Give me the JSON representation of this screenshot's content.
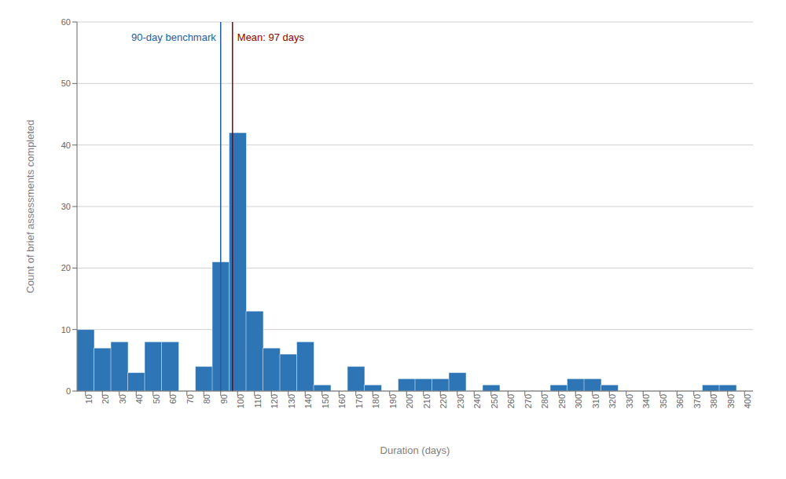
{
  "chart_data": {
    "type": "bar",
    "x": [
      10,
      20,
      30,
      40,
      50,
      60,
      70,
      80,
      90,
      100,
      110,
      120,
      130,
      140,
      150,
      160,
      170,
      180,
      190,
      200,
      210,
      220,
      230,
      240,
      250,
      260,
      270,
      280,
      290,
      300,
      310,
      320,
      330,
      340,
      350,
      360,
      370,
      380,
      390,
      400
    ],
    "values": [
      10,
      7,
      8,
      3,
      8,
      8,
      0,
      4,
      21,
      42,
      13,
      7,
      6,
      8,
      1,
      0,
      4,
      1,
      0,
      2,
      2,
      2,
      3,
      0,
      1,
      0,
      0,
      0,
      1,
      2,
      2,
      1,
      0,
      0,
      0,
      0,
      0,
      1,
      1,
      0
    ],
    "color": "#2e75b6",
    "x_label": "Duration (days)",
    "y_label": "Count of brief assessments completed",
    "xlim": [
      5,
      405
    ],
    "xticks": [
      10,
      20,
      30,
      40,
      50,
      60,
      70,
      80,
      90,
      100,
      110,
      120,
      130,
      140,
      150,
      160,
      170,
      180,
      190,
      200,
      210,
      220,
      230,
      240,
      250,
      260,
      270,
      280,
      290,
      300,
      310,
      320,
      330,
      340,
      350,
      360,
      370,
      380,
      390,
      400
    ],
    "ylim": [
      0,
      60
    ],
    "yticks": [
      0,
      10,
      20,
      30,
      40,
      50,
      60
    ],
    "grid": true,
    "annotations": [
      {
        "text": "90-day benchmark",
        "x": 90,
        "color": "#2060a0"
      },
      {
        "text": "Mean: 97 days",
        "x": 97,
        "color": "#8B0000"
      }
    ]
  }
}
